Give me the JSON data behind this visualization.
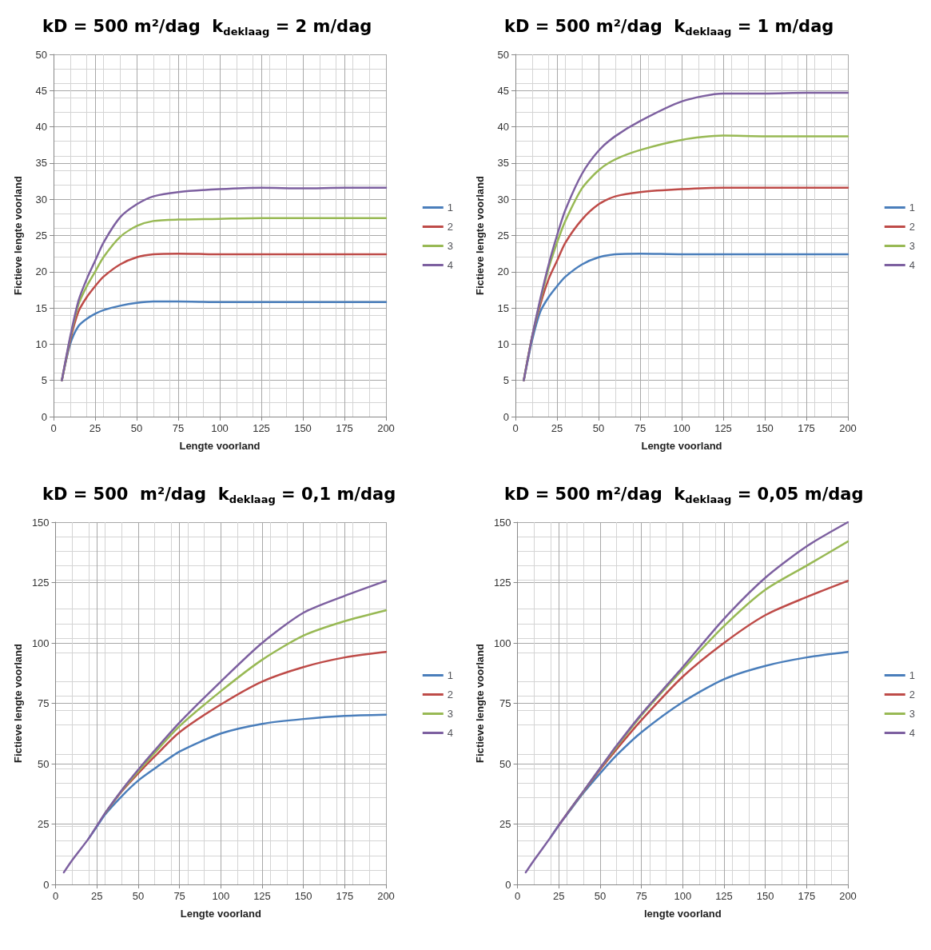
{
  "chart_data": [
    {
      "type": "line",
      "title": "kD = 500 m²/dag  k$_{deklaag}$ = 2 m/dag",
      "xlabel": "Lengte voorland",
      "ylabel": "Fictieve lengte voorland",
      "x": [
        5,
        10,
        15,
        20,
        25,
        30,
        40,
        50,
        60,
        75,
        100,
        125,
        150,
        175,
        200
      ],
      "xlim": [
        0,
        200
      ],
      "xticks": [
        0,
        25,
        50,
        75,
        100,
        125,
        150,
        175,
        200
      ],
      "ylim": [
        0,
        50
      ],
      "yticks": [
        0,
        5,
        10,
        15,
        20,
        25,
        30,
        35,
        40,
        45,
        50
      ],
      "grid": true,
      "legend": "right",
      "marker": "none",
      "line_style": "solid",
      "series": [
        {
          "name": "1",
          "color": "#4a7ebb",
          "values": [
            5,
            10,
            12.5,
            13.5,
            14.2,
            14.7,
            15.3,
            15.7,
            15.9,
            15.9,
            15.8,
            15.8,
            15.8,
            15.8,
            15.8
          ]
        },
        {
          "name": "2",
          "color": "#be4b48",
          "values": [
            5,
            10.5,
            14.5,
            16.5,
            18,
            19.3,
            21,
            22,
            22.4,
            22.5,
            22.4,
            22.4,
            22.4,
            22.4,
            22.4
          ]
        },
        {
          "name": "3",
          "color": "#98b954",
          "values": [
            5,
            10.8,
            15.5,
            18,
            20,
            22,
            24.8,
            26.3,
            27,
            27.2,
            27.3,
            27.4,
            27.4,
            27.4,
            27.4
          ]
        },
        {
          "name": "4",
          "color": "#7d60a0",
          "values": [
            5,
            11,
            16,
            19,
            21.5,
            24,
            27.5,
            29.3,
            30.4,
            31,
            31.4,
            31.6,
            31.5,
            31.6,
            31.6
          ]
        }
      ]
    },
    {
      "type": "line",
      "title": "kD = 500 m²/dag  k$_{deklaag}$ = 1 m/dag",
      "xlabel": "Lengte voorland",
      "ylabel": "Fictieve lengte voorland",
      "x": [
        5,
        10,
        15,
        20,
        25,
        30,
        40,
        50,
        60,
        75,
        100,
        125,
        150,
        175,
        200
      ],
      "xlim": [
        0,
        200
      ],
      "xticks": [
        0,
        25,
        50,
        75,
        100,
        125,
        150,
        175,
        200
      ],
      "ylim": [
        0,
        50
      ],
      "yticks": [
        0,
        5,
        10,
        15,
        20,
        25,
        30,
        35,
        40,
        45,
        50
      ],
      "grid": true,
      "legend": "right",
      "marker": "none",
      "line_style": "solid",
      "series": [
        {
          "name": "1",
          "color": "#4a7ebb",
          "values": [
            5,
            10.5,
            14.5,
            16.5,
            18,
            19.3,
            21,
            22,
            22.4,
            22.5,
            22.4,
            22.4,
            22.4,
            22.4,
            22.4
          ]
        },
        {
          "name": "2",
          "color": "#be4b48",
          "values": [
            5,
            11,
            15.5,
            19,
            21.5,
            24,
            27.2,
            29.3,
            30.4,
            31,
            31.4,
            31.6,
            31.6,
            31.6,
            31.6
          ]
        },
        {
          "name": "3",
          "color": "#98b954",
          "values": [
            5,
            11,
            16,
            20.5,
            24,
            27,
            31.5,
            34,
            35.5,
            36.8,
            38.2,
            38.8,
            38.7,
            38.7,
            38.7
          ]
        },
        {
          "name": "4",
          "color": "#7d60a0",
          "values": [
            5,
            11,
            16.3,
            21,
            25,
            28.5,
            33.5,
            36.7,
            38.7,
            40.8,
            43.5,
            44.6,
            44.6,
            44.7,
            44.7
          ]
        }
      ]
    },
    {
      "type": "line",
      "title": "kD = 500  m²/dag  k$_{deklaag}$ = 0,1 m/dag",
      "xlabel": "Lengte voorland",
      "ylabel": "Fictieve lengte voorland",
      "x": [
        5,
        10,
        20,
        25,
        30,
        40,
        50,
        60,
        75,
        100,
        125,
        150,
        175,
        200
      ],
      "xlim": [
        0,
        200
      ],
      "xticks": [
        0,
        25,
        50,
        75,
        100,
        125,
        150,
        175,
        200
      ],
      "ylim": [
        0,
        150
      ],
      "yticks": [
        0,
        25,
        50,
        75,
        100,
        125,
        150
      ],
      "grid": true,
      "legend": "right",
      "marker": "none",
      "line_style": "solid",
      "series": [
        {
          "name": "1",
          "color": "#4a7ebb",
          "values": [
            null,
            null,
            19,
            24,
            29,
            36.5,
            43,
            48,
            55,
            62.5,
            66.5,
            68.5,
            69.8,
            70.3
          ]
        },
        {
          "name": "2",
          "color": "#be4b48",
          "values": [
            null,
            null,
            null,
            null,
            29.5,
            38.5,
            46,
            53,
            63,
            74.5,
            84,
            90,
            94,
            96.3
          ]
        },
        {
          "name": "3",
          "color": "#98b954",
          "values": [
            null,
            null,
            null,
            null,
            29.5,
            38.8,
            46.8,
            54.5,
            65.5,
            80,
            93,
            103,
            109,
            113.5
          ]
        },
        {
          "name": "4",
          "color": "#7d60a0",
          "values": [
            5,
            10,
            19,
            24.3,
            29.6,
            39,
            47.5,
            55.5,
            67,
            84,
            100,
            112.5,
            119.5,
            125.7
          ]
        }
      ]
    },
    {
      "type": "line",
      "title": "kD = 500 m²/dag  k$_{deklaag}$ = 0,05 m/dag",
      "xlabel": "lengte voorland",
      "ylabel": "Fictieve lengte voorland",
      "x": [
        5,
        10,
        20,
        25,
        30,
        40,
        50,
        60,
        75,
        100,
        125,
        150,
        175,
        200
      ],
      "xlim": [
        0,
        200
      ],
      "xticks": [
        0,
        25,
        50,
        75,
        100,
        125,
        150,
        175,
        200
      ],
      "ylim": [
        0,
        150
      ],
      "yticks": [
        0,
        25,
        50,
        75,
        100,
        125,
        150
      ],
      "grid": true,
      "legend": "right",
      "marker": "none",
      "line_style": "solid",
      "series": [
        {
          "name": "1",
          "color": "#4a7ebb",
          "values": [
            null,
            null,
            19.5,
            24.5,
            29,
            38,
            46,
            53.5,
            63,
            75.5,
            85,
            90.5,
            94,
            96.3
          ]
        },
        {
          "name": "2",
          "color": "#be4b48",
          "values": [
            null,
            null,
            null,
            24.5,
            29.3,
            38.5,
            47.5,
            56,
            68,
            86,
            100,
            111.5,
            119,
            125.7
          ]
        },
        {
          "name": "3",
          "color": "#98b954",
          "values": [
            null,
            null,
            null,
            null,
            29.3,
            38.6,
            48,
            57,
            70,
            89,
            107,
            122,
            132,
            142
          ]
        },
        {
          "name": "4",
          "color": "#7d60a0",
          "values": [
            5,
            10,
            19.5,
            24.5,
            29.3,
            38.7,
            48.2,
            57.5,
            70.5,
            90,
            110,
            127,
            140,
            150
          ]
        }
      ]
    }
  ]
}
